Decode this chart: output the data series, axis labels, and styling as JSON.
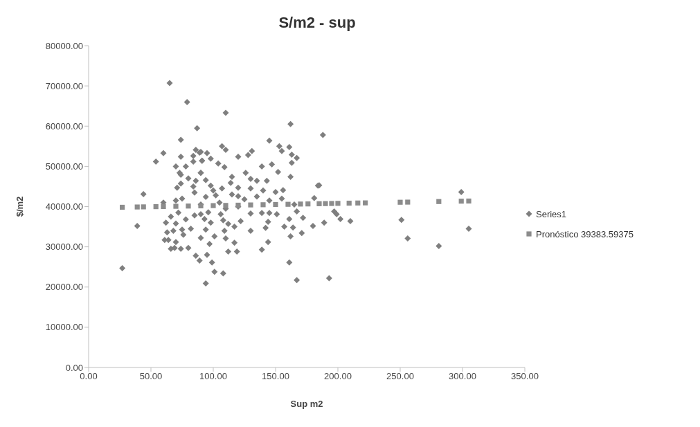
{
  "chart_data": {
    "type": "scatter",
    "title": "S/m2 - sup",
    "xlabel": "Sup m2",
    "ylabel": "$/m2",
    "legend": "right",
    "grid": false,
    "xlim": [
      0,
      350
    ],
    "xticks": [
      {
        "value": 0,
        "label": "0.00"
      },
      {
        "value": 50,
        "label": "50.00"
      },
      {
        "value": 100,
        "label": "100.00"
      },
      {
        "value": 150,
        "label": "150.00"
      },
      {
        "value": 200,
        "label": "200.00"
      },
      {
        "value": 250,
        "label": "250.00"
      },
      {
        "value": 300,
        "label": "300.00"
      },
      {
        "value": 350,
        "label": "350.00"
      }
    ],
    "ylim": [
      0,
      80000
    ],
    "yticks": [
      {
        "value": 0,
        "label": "0.00"
      },
      {
        "value": 10000,
        "label": "10000.00"
      },
      {
        "value": 20000,
        "label": "20000.00"
      },
      {
        "value": 30000,
        "label": "30000.00"
      },
      {
        "value": 40000,
        "label": "40000.00"
      },
      {
        "value": 50000,
        "label": "50000.00"
      },
      {
        "value": 60000,
        "label": "60000.00"
      },
      {
        "value": 70000,
        "label": "70000.00"
      },
      {
        "value": 80000,
        "label": "80000.00"
      }
    ],
    "series": [
      {
        "name": "Series1",
        "color": "#7f7f7f",
        "marker": "diamond",
        "x": [
          65,
          79,
          87,
          74,
          60,
          54,
          74,
          86,
          89,
          84,
          84,
          91,
          70,
          78,
          73,
          74,
          80,
          90,
          86,
          74,
          71,
          84,
          110,
          162,
          188,
          145,
          107,
          110,
          153,
          155,
          161,
          131,
          128,
          90,
          95,
          91,
          98,
          120,
          163,
          167,
          163,
          104,
          109,
          139,
          147,
          90,
          126,
          152,
          130,
          135,
          115,
          94,
          143,
          162,
          185,
          98,
          114,
          120,
          107,
          299,
          184,
          156,
          150,
          102,
          94,
          120,
          181,
          90,
          96,
          106,
          130,
          139,
          145,
          151,
          167,
          197,
          199,
          202,
          210,
          172,
          161,
          144,
          122,
          112,
          98,
          93,
          108,
          189,
          180,
          164,
          157,
          142,
          117,
          130,
          109,
          94,
          101,
          110,
          97,
          117,
          144,
          171,
          162,
          112,
          119,
          139,
          95,
          99,
          161,
          101,
          108,
          94,
          167,
          193,
          251,
          256,
          281,
          305,
          90,
          89,
          27,
          39,
          61,
          63,
          66,
          69,
          74,
          80,
          86,
          64,
          75,
          70,
          44,
          75,
          70,
          85,
          115,
          125,
          135,
          140,
          60,
          105,
          100,
          130,
          145,
          155,
          165,
          90,
          110,
          120,
          62,
          66,
          70,
          72,
          78,
          82,
          85,
          76,
          68
        ],
        "values": [
          70700,
          66000,
          59500,
          56600,
          53300,
          51200,
          52400,
          54100,
          53400,
          52600,
          51200,
          51400,
          50000,
          50000,
          48400,
          47900,
          47000,
          48400,
          46400,
          45700,
          44700,
          45000,
          63300,
          60500,
          57800,
          56400,
          55000,
          54100,
          55000,
          53800,
          54800,
          53800,
          52800,
          53600,
          53300,
          51400,
          51900,
          52400,
          52900,
          52100,
          50900,
          50700,
          49800,
          50000,
          50500,
          48400,
          48400,
          48600,
          46900,
          46400,
          47400,
          46600,
          46400,
          47400,
          45300,
          45200,
          45900,
          44700,
          44500,
          43600,
          45200,
          44100,
          43600,
          42800,
          42400,
          42600,
          42100,
          38100,
          38600,
          38100,
          38300,
          38400,
          38400,
          38100,
          38800,
          38800,
          38100,
          36900,
          36400,
          37200,
          36900,
          36200,
          36400,
          35700,
          36000,
          36900,
          36600,
          36000,
          35200,
          34800,
          35000,
          34700,
          35000,
          34000,
          34000,
          34300,
          32600,
          32100,
          30700,
          31000,
          31200,
          33400,
          32600,
          28800,
          28800,
          29300,
          28000,
          26100,
          26100,
          23800,
          23400,
          20900,
          21700,
          22200,
          36700,
          32100,
          30200,
          34500,
          32200,
          26600,
          24700,
          35200,
          31700,
          33600,
          29500,
          29700,
          29500,
          29700,
          27800,
          31700,
          34300,
          31200,
          43100,
          42000,
          41500,
          43500,
          43000,
          41800,
          42500,
          44000,
          41000,
          41000,
          44000,
          44500,
          41500,
          42000,
          40500,
          40500,
          39500,
          40000,
          36000,
          37500,
          35800,
          38500,
          36800,
          34500,
          37800,
          33000,
          34000
        ]
      },
      {
        "name": "Pronóstico 39383.59375",
        "color": "#8c8c8c",
        "marker": "square",
        "x": [
          27,
          39,
          44,
          54,
          60,
          70,
          80,
          90,
          100,
          110,
          120,
          130,
          140,
          150,
          160,
          170,
          176,
          185,
          190,
          195,
          200,
          209,
          216,
          222,
          250,
          256,
          281,
          299,
          305
        ],
        "values": [
          39830,
          39900,
          39930,
          39980,
          40010,
          40070,
          40130,
          40180,
          40240,
          40290,
          40350,
          40410,
          40460,
          40520,
          40570,
          40630,
          40660,
          40710,
          40740,
          40770,
          40800,
          40850,
          40890,
          40920,
          41080,
          41110,
          41250,
          41350,
          41380
        ]
      }
    ]
  }
}
